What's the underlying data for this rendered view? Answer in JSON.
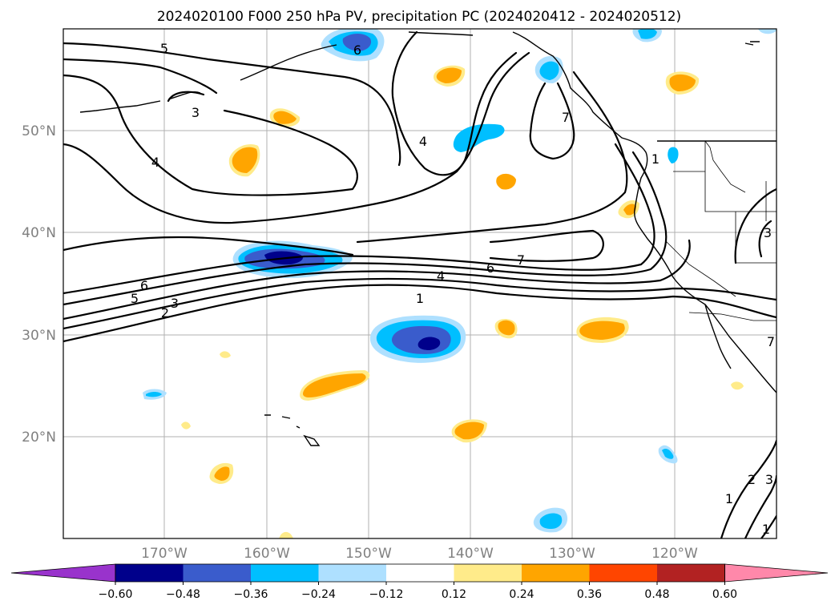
{
  "title": "2024020100 F000 250 hPa PV, precipitation PC (2024020412 - 2024020512)",
  "lon_labels": [
    "170°W",
    "160°W",
    "150°W",
    "140°W",
    "130°W",
    "120°W"
  ],
  "lat_labels": [
    "50°N",
    "40°N",
    "30°N",
    "20°N"
  ],
  "colorbar": {
    "ticks": [
      "−0.60",
      "−0.48",
      "−0.36",
      "−0.24",
      "−0.12",
      "0.12",
      "0.24",
      "0.36",
      "0.48",
      "0.60"
    ],
    "under_color": "#9933cc",
    "colors": [
      "#00008b",
      "#3a5ccc",
      "#00bfff",
      "#aee0ff",
      "#ffffff",
      "#ffeb8a",
      "#ffa500",
      "#ff4500",
      "#b22222"
    ],
    "over_color": "#ff88aa"
  },
  "contour_labels": [
    "5",
    "6",
    "3",
    "4",
    "4",
    "7",
    "6",
    "7",
    "6",
    "5",
    "3",
    "2",
    "4",
    "1",
    "1",
    "3",
    "1",
    "2",
    "3",
    "1",
    "7"
  ]
}
